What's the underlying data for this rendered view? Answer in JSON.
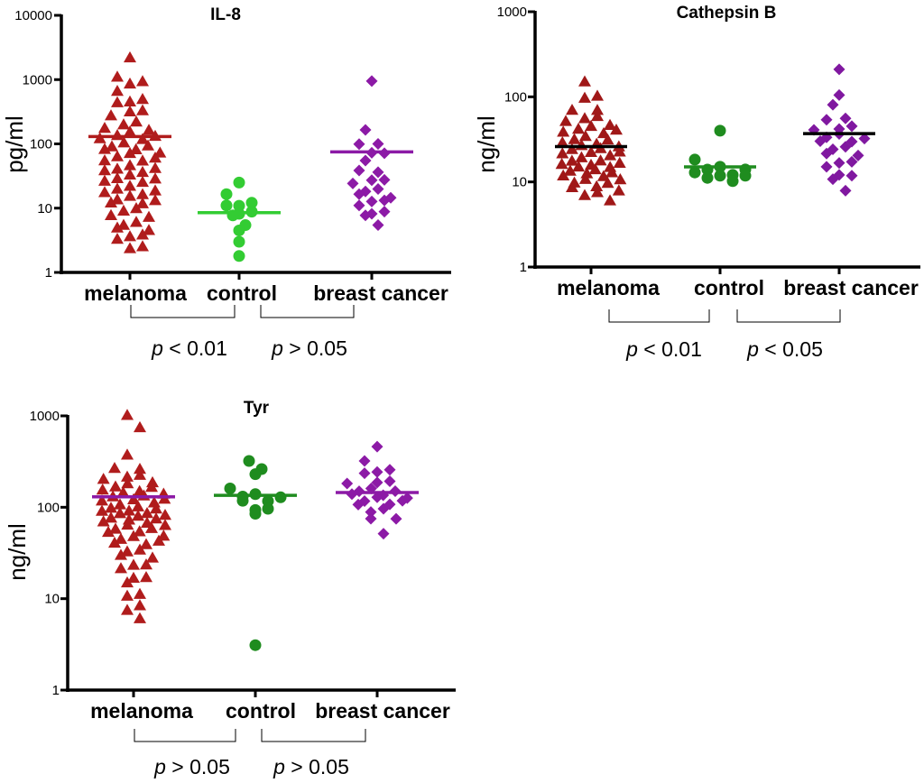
{
  "chart_data": [
    {
      "type": "scatter",
      "title": "IL-8",
      "ylabel": "pg/ml",
      "yscale": "log",
      "ylim": [
        1,
        10000
      ],
      "ticks": [
        "1",
        "10",
        "100",
        "1000",
        "10000"
      ],
      "categories": [
        "melanoma",
        "control",
        "breast cancer"
      ],
      "colors": [
        "#b01c1c",
        "#33cc33",
        "#8c1aa6"
      ],
      "mean_colors": [
        "#b01c1c",
        "#33cc33",
        "#8c1aa6"
      ],
      "markers": [
        "triangle",
        "circle",
        "diamond"
      ],
      "series": [
        {
          "name": "melanoma",
          "mean": 130,
          "values": [
            2200,
            1000,
            950,
            850,
            600,
            500,
            450,
            400,
            350,
            300,
            250,
            220,
            200,
            180,
            160,
            150,
            140,
            130,
            120,
            110,
            100,
            95,
            90,
            85,
            80,
            75,
            70,
            65,
            60,
            55,
            50,
            45,
            42,
            40,
            38,
            35,
            32,
            30,
            28,
            26,
            24,
            22,
            20,
            18,
            17,
            16,
            15,
            14,
            13,
            12,
            11,
            10,
            9,
            8,
            7,
            6,
            5.5,
            5,
            4.5,
            4,
            3.5,
            3,
            2.6,
            2.3
          ]
        },
        {
          "name": "control",
          "mean": 8.5,
          "values": [
            25,
            15,
            12,
            11,
            10,
            9,
            8,
            7,
            6,
            4.5,
            3,
            1.8
          ]
        },
        {
          "name": "breast cancer",
          "mean": 75,
          "values": [
            950,
            150,
            110,
            90,
            80,
            65,
            50,
            40,
            35,
            30,
            25,
            22,
            20,
            18,
            16,
            15,
            14,
            12,
            10,
            9,
            8,
            7,
            6
          ]
        }
      ],
      "comparisons": [
        {
          "p_symbol": "p",
          "p_text": " < 0.01"
        },
        {
          "p_symbol": "p",
          "p_text": " > 0.05"
        }
      ]
    },
    {
      "type": "scatter",
      "title": "Cathepsin B",
      "ylabel": "ng/ml",
      "yscale": "log",
      "ylim": [
        1,
        1000
      ],
      "ticks": [
        "1",
        "10",
        "100",
        "1000"
      ],
      "categories": [
        "melanoma",
        "control",
        "breast cancer"
      ],
      "colors": [
        "#a01818",
        "#1f8c1f",
        "#8018a0"
      ],
      "mean_colors": [
        "#000000",
        "#1f8c1f",
        "#000000"
      ],
      "markers": [
        "triangle",
        "circle",
        "diamond"
      ],
      "series": [
        {
          "name": "melanoma",
          "mean": 26,
          "values": [
            140,
            110,
            90,
            75,
            65,
            60,
            55,
            50,
            48,
            45,
            42,
            40,
            38,
            36,
            34,
            32,
            30,
            29,
            28,
            27,
            26,
            25,
            24,
            23,
            22,
            21,
            20,
            19,
            18,
            17,
            16.5,
            16,
            15.5,
            15,
            14.5,
            14,
            13.5,
            13,
            12.5,
            12,
            11.5,
            11,
            10.5,
            10,
            9.5,
            9,
            8.5,
            8,
            7.5,
            7,
            6.5
          ]
        },
        {
          "name": "control",
          "mean": 15,
          "values": [
            40,
            17,
            15,
            14,
            13,
            13,
            12,
            12,
            11,
            11,
            11
          ]
        },
        {
          "name": "breast cancer",
          "mean": 37,
          "values": [
            210,
            105,
            75,
            60,
            50,
            45,
            42,
            38,
            36,
            34,
            32,
            30,
            28,
            26,
            24,
            22,
            20,
            18,
            16,
            14,
            13,
            11,
            10,
            8.5
          ]
        }
      ],
      "comparisons": [
        {
          "p_symbol": "p",
          "p_text": " < 0.01"
        },
        {
          "p_symbol": "p",
          "p_text": " < 0.05"
        }
      ]
    },
    {
      "type": "scatter",
      "title": "Tyr",
      "ylabel": "ng/ml",
      "yscale": "log",
      "ylim": [
        1,
        1000
      ],
      "ticks": [
        "1",
        "10",
        "100",
        "1000"
      ],
      "categories": [
        "melanoma",
        "control",
        "breast cancer"
      ],
      "colors": [
        "#b01c1c",
        "#1f8c1f",
        "#8c1aa6"
      ],
      "mean_colors": [
        "#8c1aa6",
        "#1f8c1f",
        "#8c1aa6"
      ],
      "markers": [
        "triangle",
        "circle",
        "diamond"
      ],
      "series": [
        {
          "name": "melanoma",
          "mean": 130,
          "values": [
            950,
            800,
            350,
            280,
            250,
            230,
            210,
            200,
            190,
            180,
            170,
            160,
            155,
            150,
            145,
            140,
            135,
            130,
            125,
            120,
            115,
            110,
            105,
            100,
            98,
            95,
            92,
            90,
            88,
            85,
            82,
            80,
            78,
            75,
            72,
            70,
            68,
            65,
            62,
            60,
            58,
            55,
            52,
            50,
            48,
            45,
            42,
            40,
            38,
            35,
            32,
            30,
            28,
            25,
            22,
            20,
            18,
            16,
            14,
            12,
            10,
            9,
            7,
            6.5
          ]
        },
        {
          "name": "control",
          "mean": 135,
          "values": [
            300,
            280,
            230,
            150,
            140,
            130,
            125,
            120,
            110,
            100,
            90,
            85,
            3.1
          ]
        },
        {
          "name": "breast cancer",
          "mean": 145,
          "values": [
            460,
            300,
            260,
            240,
            220,
            200,
            180,
            170,
            160,
            150,
            145,
            140,
            135,
            130,
            125,
            120,
            115,
            110,
            100,
            95,
            90,
            80,
            70,
            55
          ]
        }
      ],
      "comparisons": [
        {
          "p_symbol": "p",
          "p_text": " > 0.05"
        },
        {
          "p_symbol": "p",
          "p_text": " > 0.05"
        }
      ]
    }
  ]
}
